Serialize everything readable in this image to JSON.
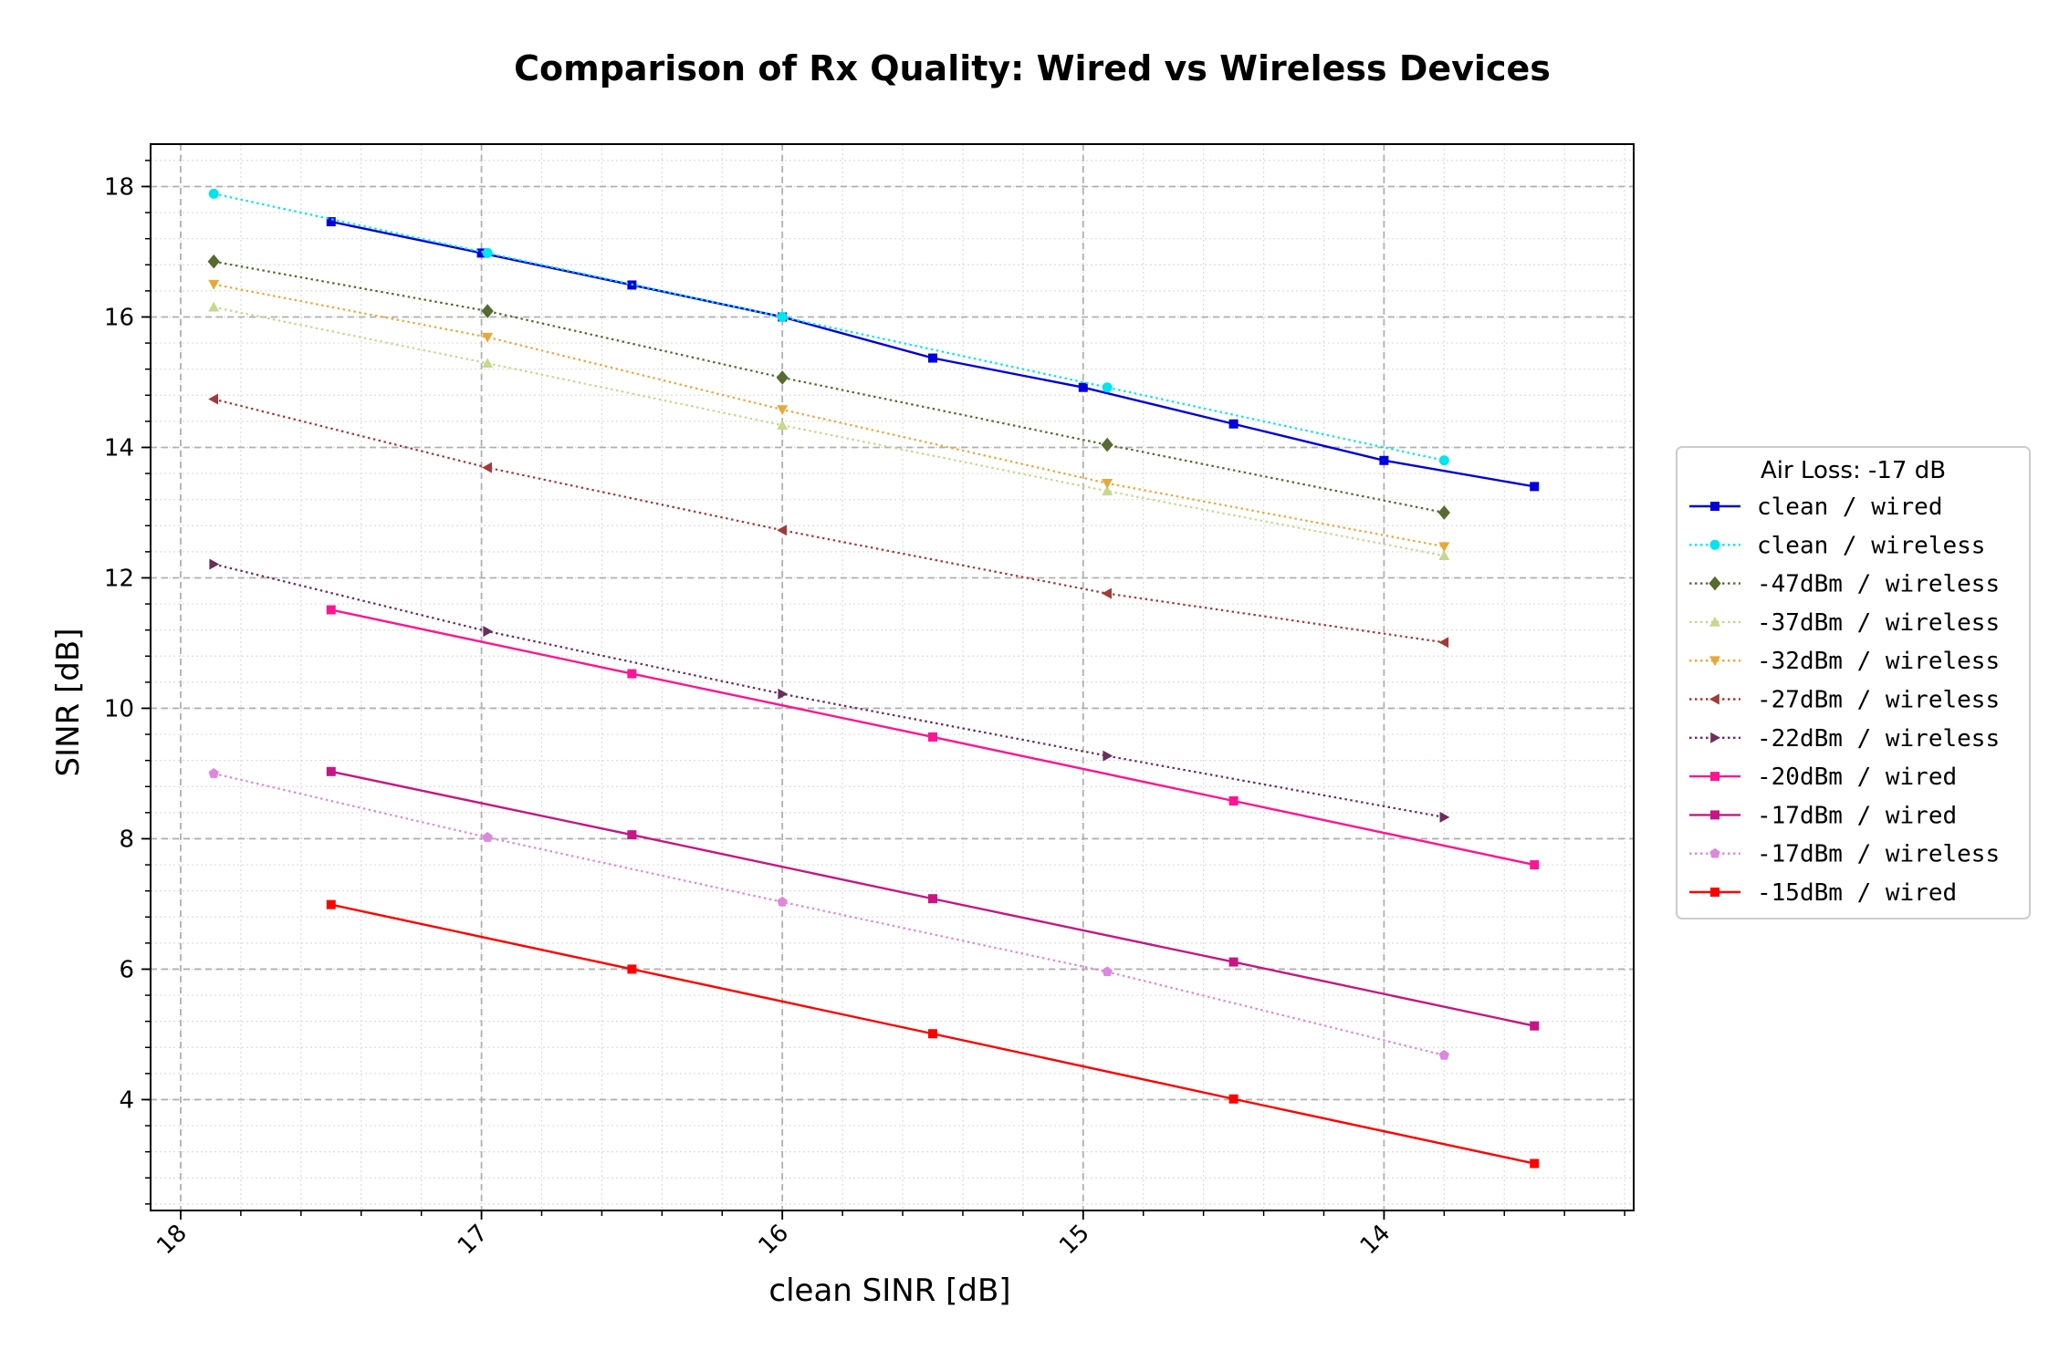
{
  "chart_data": {
    "type": "line",
    "title": "Comparison of Rx Quality: Wired vs Wireless Devices",
    "xlabel": "clean SINR [dB]",
    "ylabel": "SINR [dB]",
    "x_inverted": true,
    "xlim": [
      18.1,
      13.17
    ],
    "ylim": [
      2.3,
      18.65
    ],
    "x_ticks": [
      18,
      17,
      16,
      15,
      14
    ],
    "y_ticks": [
      4,
      6,
      8,
      10,
      12,
      14,
      16,
      18
    ],
    "x_minor_step": 0.2,
    "y_minor_step": 0.4,
    "grid": true,
    "legend_title": "Air Loss: -17 dB",
    "legend_location": "outside right",
    "series": [
      {
        "name": " clean / wired",
        "color": "#0000dd",
        "linestyle": "solid",
        "marker": "square",
        "x": [
          17.5,
          17.0,
          16.5,
          16.0,
          15.5,
          15.0,
          14.5,
          14.0,
          13.5
        ],
        "y": [
          17.46,
          16.98,
          16.49,
          16.0,
          15.37,
          14.92,
          14.36,
          13.8,
          13.4
        ]
      },
      {
        "name": " clean / wireless",
        "color": "#00e5ee",
        "linestyle": "dotted",
        "marker": "circle",
        "x": [
          17.89,
          16.98,
          16.0,
          14.92,
          13.8
        ],
        "y": [
          17.89,
          16.98,
          16.0,
          14.92,
          13.8
        ]
      },
      {
        "name": "-47dBm / wireless",
        "color": "#556b2f",
        "linestyle": "dotted",
        "marker": "diamond",
        "x": [
          17.89,
          16.98,
          16.0,
          14.92,
          13.8
        ],
        "y": [
          16.85,
          16.09,
          15.07,
          14.04,
          13.0
        ]
      },
      {
        "name": "-37dBm / wireless",
        "color": "#c5d88f",
        "linestyle": "dotted",
        "marker": "triangle-up",
        "x": [
          17.89,
          16.98,
          16.0,
          14.92,
          13.8
        ],
        "y": [
          16.15,
          15.29,
          14.34,
          13.33,
          12.34
        ]
      },
      {
        "name": "-32dBm / wireless",
        "color": "#e8a838",
        "linestyle": "dotted",
        "marker": "triangle-down",
        "x": [
          17.89,
          16.98,
          16.0,
          14.92,
          13.8
        ],
        "y": [
          16.5,
          15.69,
          14.58,
          13.45,
          12.48
        ]
      },
      {
        "name": "-27dBm / wireless",
        "color": "#a33a3a",
        "linestyle": "dotted",
        "marker": "triangle-left",
        "x": [
          17.89,
          16.98,
          16.0,
          14.92,
          13.8
        ],
        "y": [
          14.74,
          13.69,
          12.73,
          11.76,
          11.01
        ]
      },
      {
        "name": "-22dBm / wireless",
        "color": "#6b2d5c",
        "linestyle": "dotted",
        "marker": "triangle-right",
        "x": [
          17.89,
          16.98,
          16.0,
          14.92,
          13.8
        ],
        "y": [
          12.21,
          11.18,
          10.22,
          9.27,
          8.33
        ]
      },
      {
        "name": "-20dBm / wired",
        "color": "#ff1493",
        "linestyle": "solid",
        "marker": "square",
        "x": [
          17.5,
          16.5,
          15.5,
          14.5,
          13.5
        ],
        "y": [
          11.51,
          10.53,
          9.56,
          8.58,
          7.6
        ]
      },
      {
        "name": "-17dBm / wired",
        "color": "#c71585",
        "linestyle": "solid",
        "marker": "square",
        "x": [
          17.5,
          16.5,
          15.5,
          14.5,
          13.5
        ],
        "y": [
          9.03,
          8.06,
          7.08,
          6.11,
          5.13
        ]
      },
      {
        "name": "-17dBm / wireless",
        "color": "#dd88dd",
        "linestyle": "dotted",
        "marker": "pentagon",
        "x": [
          17.89,
          16.98,
          16.0,
          14.92,
          13.8
        ],
        "y": [
          9.0,
          8.02,
          7.03,
          5.96,
          4.68
        ]
      },
      {
        "name": "-15dBm / wired",
        "color": "#ff0000",
        "linestyle": "solid",
        "marker": "square",
        "x": [
          17.5,
          16.5,
          15.5,
          14.5,
          13.5
        ],
        "y": [
          6.99,
          6.0,
          5.01,
          4.01,
          3.02
        ]
      }
    ]
  }
}
